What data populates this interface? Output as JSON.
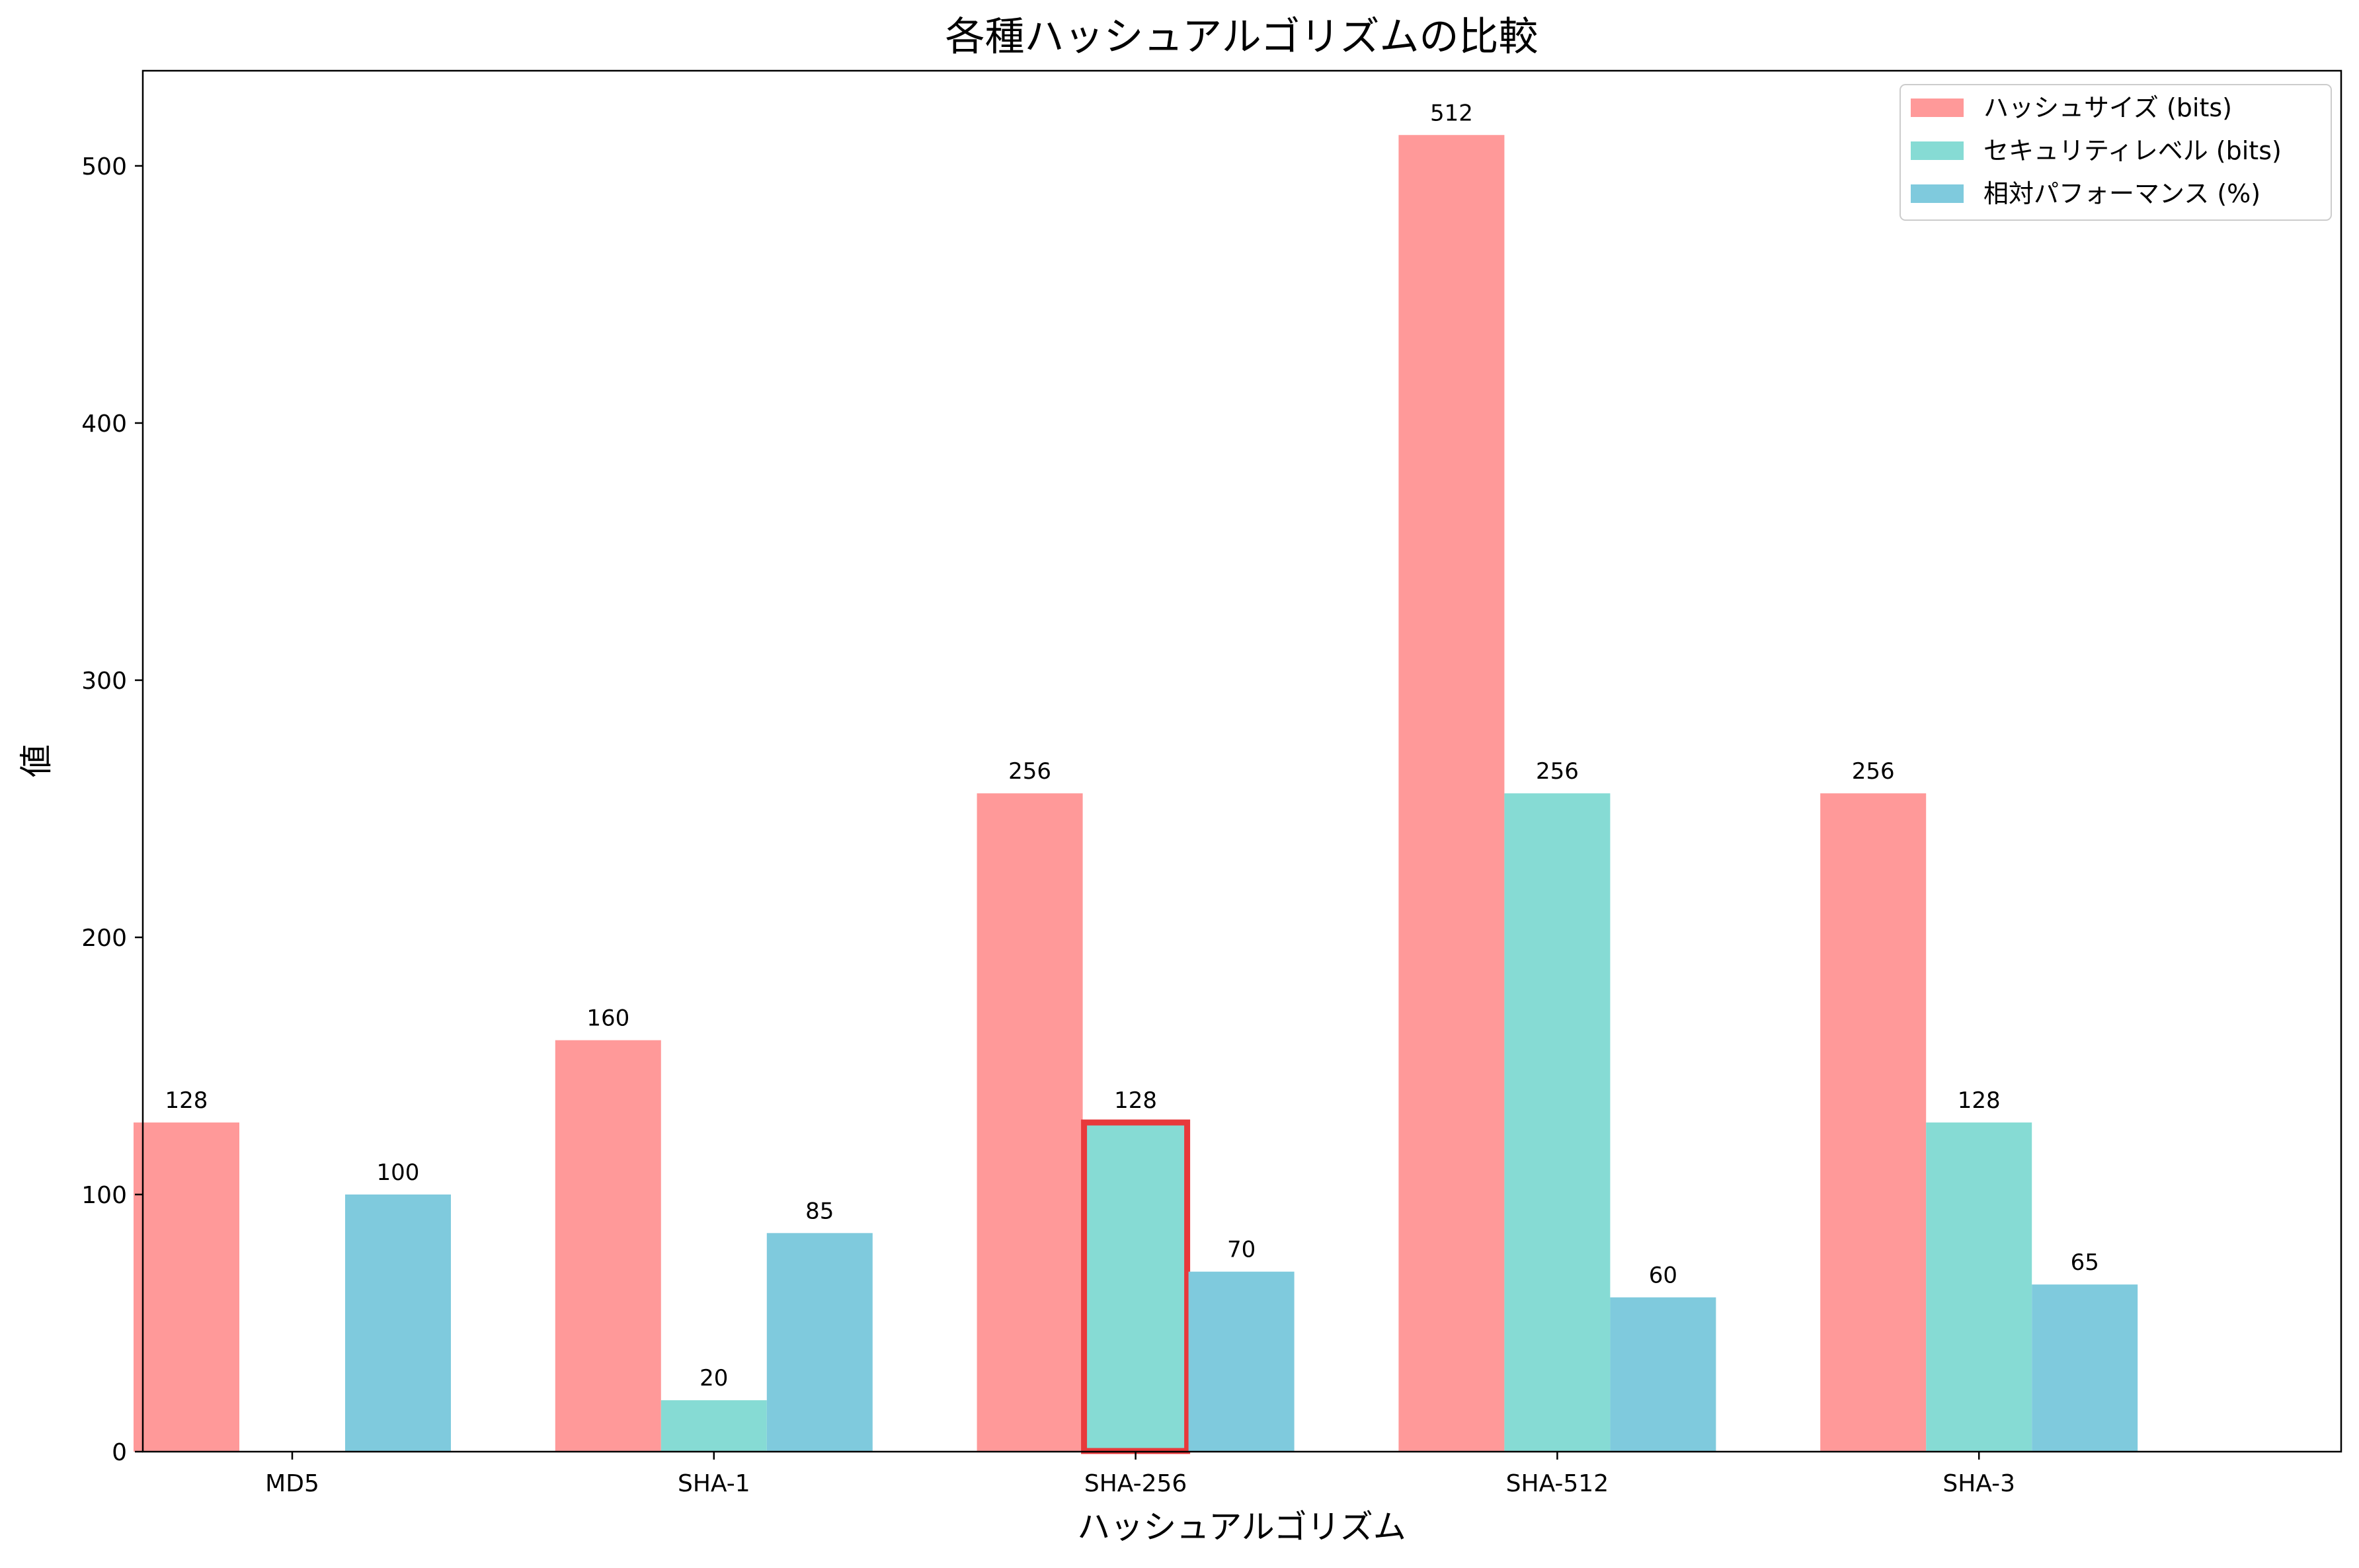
{
  "chart_data": {
    "type": "bar",
    "title": "各種ハッシュアルゴリズムの比較",
    "xlabel": "ハッシュアルゴリズム",
    "ylabel": "値",
    "categories": [
      "MD5",
      "SHA-1",
      "SHA-256",
      "SHA-512",
      "SHA-3"
    ],
    "series": [
      {
        "name": "ハッシュサイズ (bits)",
        "values": [
          128,
          160,
          256,
          512,
          256
        ],
        "color": "#ff9999"
      },
      {
        "name": "セキュリティレベル (bits)",
        "values": [
          0,
          20,
          128,
          256,
          128
        ],
        "color": "#86dbd4"
      },
      {
        "name": "相対パフォーマンス (%)",
        "values": [
          100,
          85,
          70,
          60,
          65
        ],
        "color": "#7fcadd"
      }
    ],
    "ylim": [
      0,
      537
    ],
    "yticks": [
      0,
      100,
      200,
      300,
      400,
      500
    ],
    "legend_position": "top-right",
    "grid": false,
    "highlight": {
      "category": "SHA-256",
      "series": "セキュリティレベル (bits)",
      "color": "#e8393b"
    }
  }
}
